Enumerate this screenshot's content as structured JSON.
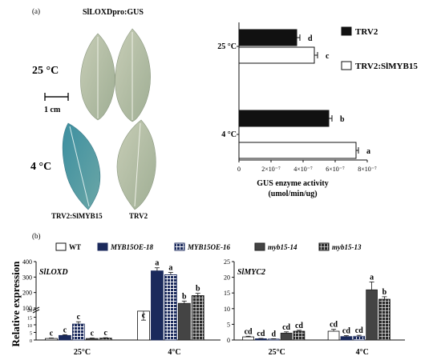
{
  "panel_a": {
    "label": "(a)",
    "image_title": "SlLOXDpro:GUS",
    "row_labels": [
      "25 °C",
      "4 °C"
    ],
    "scale_label": "1 cm",
    "leaf_labels": [
      "TRV2:SlMYB15",
      "TRV2"
    ]
  },
  "panel_b": {
    "label": "(b)",
    "ylabel": "Relative expression"
  },
  "chart_data": [
    {
      "type": "bar",
      "orientation": "horizontal",
      "categories": [
        "25 °C",
        "4 °C"
      ],
      "series": [
        {
          "name": "TRV2",
          "values": [
            3.6e-07,
            5.6e-07
          ],
          "errors": [
            2e-08,
            2e-08
          ],
          "letters": [
            "d",
            "b"
          ],
          "color": "#111111"
        },
        {
          "name": "TRV2:SlMYB15",
          "values": [
            4.7e-07,
            7.3e-07
          ],
          "errors": [
            2e-08,
            1.5e-08
          ],
          "letters": [
            "c",
            "a"
          ],
          "color": "#ffffff"
        }
      ],
      "xlabel": "GUS enzyme activity",
      "xunit": "(umol/min/ug)",
      "xlim": [
        0,
        8e-07
      ],
      "xticks": [
        "0",
        "2×10⁻⁷",
        "4×10⁻⁷",
        "6×10⁻⁷",
        "8×10⁻⁷"
      ],
      "xtick_values": [
        0,
        2e-07,
        4e-07,
        6e-07,
        8e-07
      ],
      "legend": "right"
    },
    {
      "type": "bar",
      "title": "SlLOXD",
      "categories": [
        "25°C",
        "4°C"
      ],
      "series": [
        {
          "name": "WT",
          "values": [
            1,
            19
          ],
          "errors": [
            0.3,
            2.5
          ],
          "letters": [
            "c",
            "c"
          ]
        },
        {
          "name": "MYB15OE-18",
          "values": [
            3,
            340
          ],
          "errors": [
            0.5,
            20
          ],
          "letters": [
            "c",
            "a"
          ]
        },
        {
          "name": "MYB15OE-16",
          "values": [
            10.5,
            315
          ],
          "errors": [
            1.5,
            15
          ],
          "letters": [
            "c",
            "a"
          ]
        },
        {
          "name": "myb15-14",
          "values": [
            1,
            130
          ],
          "errors": [
            0.3,
            15
          ],
          "letters": [
            "c",
            "b"
          ]
        },
        {
          "name": "myb15-13",
          "values": [
            1.2,
            180
          ],
          "errors": [
            0.3,
            15
          ],
          "letters": [
            "c",
            "b"
          ]
        }
      ],
      "ylim": [
        0,
        400
      ],
      "broken_axis": true,
      "yticks": [
        "0",
        "5",
        "10",
        "15",
        "20",
        "100",
        "200",
        "300",
        "400"
      ],
      "legend": "top"
    },
    {
      "type": "bar",
      "title": "SlMYC2",
      "categories": [
        "25°C",
        "4°C"
      ],
      "series": [
        {
          "name": "WT",
          "values": [
            1,
            2.8
          ],
          "errors": [
            0.2,
            0.6
          ],
          "letters": [
            "cd",
            "cd"
          ]
        },
        {
          "name": "MYB15OE-18",
          "values": [
            0.4,
            1.1
          ],
          "errors": [
            0.1,
            0.3
          ],
          "letters": [
            "cd",
            "cd"
          ]
        },
        {
          "name": "MYB15OE-16",
          "values": [
            0.3,
            1.2
          ],
          "errors": [
            0.1,
            0.3
          ],
          "letters": [
            "d",
            "cd"
          ]
        },
        {
          "name": "myb15-14",
          "values": [
            2.2,
            16
          ],
          "errors": [
            0.4,
            2.5
          ],
          "letters": [
            "cd",
            "a"
          ]
        },
        {
          "name": "myb15-13",
          "values": [
            2.8,
            13
          ],
          "errors": [
            0.3,
            0.8
          ],
          "letters": [
            "cd",
            "b"
          ]
        }
      ],
      "ylim": [
        0,
        25
      ],
      "yticks": [
        "0",
        "5",
        "10",
        "15",
        "20",
        "25"
      ]
    }
  ]
}
